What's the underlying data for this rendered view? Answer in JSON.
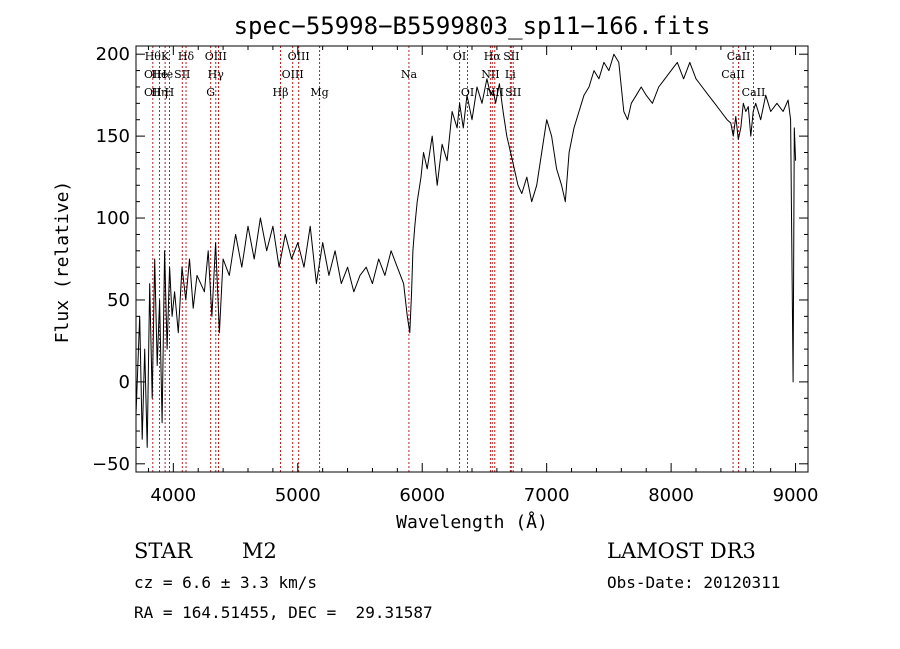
{
  "chart_data": {
    "type": "line",
    "title": "spec−55998−B5599803_sp11−166.fits",
    "xlabel": "Wavelength (Å)",
    "ylabel": "Flux (relative)",
    "xlim": [
      3700,
      9100
    ],
    "ylim": [
      -55,
      205
    ],
    "xticks": [
      4000,
      5000,
      6000,
      7000,
      8000,
      9000
    ],
    "yticks": [
      -50,
      0,
      50,
      100,
      150,
      200
    ],
    "ytick_labels": [
      "−50",
      "0",
      "50",
      "100",
      "150",
      "200"
    ],
    "grid": false,
    "series": [
      {
        "name": "flux",
        "x": [
          3700,
          3730,
          3750,
          3770,
          3790,
          3810,
          3830,
          3850,
          3870,
          3890,
          3910,
          3930,
          3950,
          3970,
          3990,
          4010,
          4040,
          4070,
          4100,
          4130,
          4160,
          4190,
          4220,
          4250,
          4280,
          4310,
          4340,
          4370,
          4400,
          4450,
          4500,
          4550,
          4600,
          4650,
          4700,
          4750,
          4800,
          4850,
          4900,
          4950,
          5000,
          5050,
          5100,
          5150,
          5200,
          5250,
          5300,
          5350,
          5400,
          5450,
          5500,
          5550,
          5600,
          5650,
          5700,
          5750,
          5800,
          5850,
          5880,
          5900,
          5915,
          5925,
          5940,
          5960,
          5990,
          6010,
          6040,
          6080,
          6120,
          6160,
          6200,
          6240,
          6280,
          6300,
          6330,
          6360,
          6400,
          6440,
          6480,
          6520,
          6550,
          6570,
          6590,
          6620,
          6650,
          6680,
          6710,
          6740,
          6770,
          6800,
          6840,
          6880,
          6920,
          6960,
          7000,
          7040,
          7080,
          7120,
          7150,
          7180,
          7220,
          7260,
          7300,
          7340,
          7380,
          7420,
          7460,
          7500,
          7540,
          7580,
          7600,
          7620,
          7650,
          7680,
          7720,
          7760,
          7800,
          7850,
          7900,
          7950,
          8000,
          8050,
          8100,
          8150,
          8200,
          8250,
          8300,
          8350,
          8400,
          8450,
          8480,
          8500,
          8520,
          8540,
          8560,
          8580,
          8600,
          8620,
          8640,
          8660,
          8680,
          8720,
          8760,
          8800,
          8850,
          8900,
          8940,
          8960,
          8980,
          8990,
          9000
        ],
        "y": [
          -20,
          40,
          -35,
          20,
          -40,
          60,
          -10,
          75,
          10,
          50,
          -25,
          80,
          20,
          70,
          40,
          55,
          30,
          70,
          50,
          75,
          45,
          65,
          60,
          55,
          80,
          40,
          85,
          30,
          75,
          65,
          90,
          70,
          95,
          75,
          100,
          80,
          95,
          70,
          90,
          75,
          85,
          70,
          95,
          60,
          85,
          65,
          80,
          60,
          70,
          55,
          65,
          70,
          60,
          75,
          65,
          80,
          70,
          60,
          40,
          30,
          55,
          80,
          95,
          110,
          125,
          140,
          130,
          150,
          120,
          145,
          135,
          165,
          155,
          170,
          155,
          175,
          160,
          180,
          170,
          185,
          175,
          178,
          170,
          182,
          165,
          150,
          140,
          130,
          120,
          115,
          125,
          110,
          120,
          140,
          160,
          150,
          130,
          120,
          110,
          140,
          155,
          165,
          175,
          180,
          190,
          185,
          195,
          190,
          200,
          195,
          180,
          165,
          160,
          170,
          175,
          180,
          175,
          170,
          180,
          185,
          190,
          195,
          185,
          195,
          185,
          180,
          175,
          170,
          165,
          160,
          158,
          150,
          162,
          148,
          155,
          170,
          165,
          168,
          150,
          165,
          170,
          160,
          175,
          165,
          170,
          165,
          172,
          160,
          0,
          155,
          135
        ]
      }
    ],
    "lines": [
      {
        "x": 3835,
        "labels": [
          {
            "row": 1,
            "text": "Hθ"
          },
          {
            "row": 2,
            "text": "OII"
          },
          {
            "row": 3,
            "text": "OII"
          }
        ]
      },
      {
        "x": 3889,
        "labels": [
          {
            "row": 2,
            "text": "He"
          },
          {
            "row": 3,
            "text": "Hη"
          }
        ]
      },
      {
        "x": 3934,
        "labels": [
          {
            "row": 1,
            "text": "K"
          },
          {
            "row": 2,
            "text": "He"
          }
        ]
      },
      {
        "x": 3969,
        "labels": [
          {
            "row": 3,
            "text": "H"
          }
        ]
      },
      {
        "x": 4072,
        "labels": [
          {
            "row": 2,
            "text": "SII"
          }
        ]
      },
      {
        "x": 4102,
        "labels": [
          {
            "row": 1,
            "text": "Hδ"
          }
        ]
      },
      {
        "x": 4300,
        "labels": [
          {
            "row": 3,
            "text": "G"
          }
        ]
      },
      {
        "x": 4341,
        "labels": [
          {
            "row": 1,
            "text": "OIII"
          },
          {
            "row": 2,
            "text": "Hγ"
          }
        ]
      },
      {
        "x": 4363,
        "labels": []
      },
      {
        "x": 4861,
        "labels": [
          {
            "row": 3,
            "text": "Hβ"
          }
        ]
      },
      {
        "x": 4959,
        "labels": [
          {
            "row": 2,
            "text": "OIII"
          }
        ]
      },
      {
        "x": 5007,
        "labels": [
          {
            "row": 1,
            "text": "OIII"
          }
        ]
      },
      {
        "x": 5175,
        "labels": [
          {
            "row": 3,
            "text": "Mg"
          }
        ]
      },
      {
        "x": 5893,
        "labels": [
          {
            "row": 2,
            "text": "Na"
          }
        ]
      },
      {
        "x": 6300,
        "labels": [
          {
            "row": 1,
            "text": "OI"
          }
        ]
      },
      {
        "x": 6364,
        "labels": [
          {
            "row": 3,
            "text": "OI"
          }
        ]
      },
      {
        "x": 6548,
        "labels": [
          {
            "row": 2,
            "text": "NII"
          }
        ]
      },
      {
        "x": 6563,
        "labels": [
          {
            "row": 1,
            "text": "Hα"
          }
        ]
      },
      {
        "x": 6583,
        "labels": [
          {
            "row": 3,
            "text": "NII"
          }
        ]
      },
      {
        "x": 6708,
        "labels": [
          {
            "row": 2,
            "text": "Li"
          }
        ]
      },
      {
        "x": 6716,
        "labels": [
          {
            "row": 1,
            "text": "SII"
          }
        ]
      },
      {
        "x": 6731,
        "labels": [
          {
            "row": 3,
            "text": "SII"
          }
        ]
      },
      {
        "x": 8498,
        "labels": [
          {
            "row": 2,
            "text": "CaII"
          }
        ]
      },
      {
        "x": 8542,
        "labels": [
          {
            "row": 1,
            "text": "CaII"
          }
        ]
      },
      {
        "x": 8662,
        "labels": [
          {
            "row": 3,
            "text": "CaII"
          }
        ]
      }
    ],
    "line_color": "#b22222",
    "spectrum_color": "#000000"
  },
  "info": {
    "object_class": "STAR",
    "subclass": "M2",
    "survey": "LAMOST DR3",
    "redshift": "cz = 6.6 ± 3.3 km/s",
    "obs_date": "Obs-Date: 20120311",
    "coords": "RA = 164.51455, DEC =  29.31587"
  }
}
